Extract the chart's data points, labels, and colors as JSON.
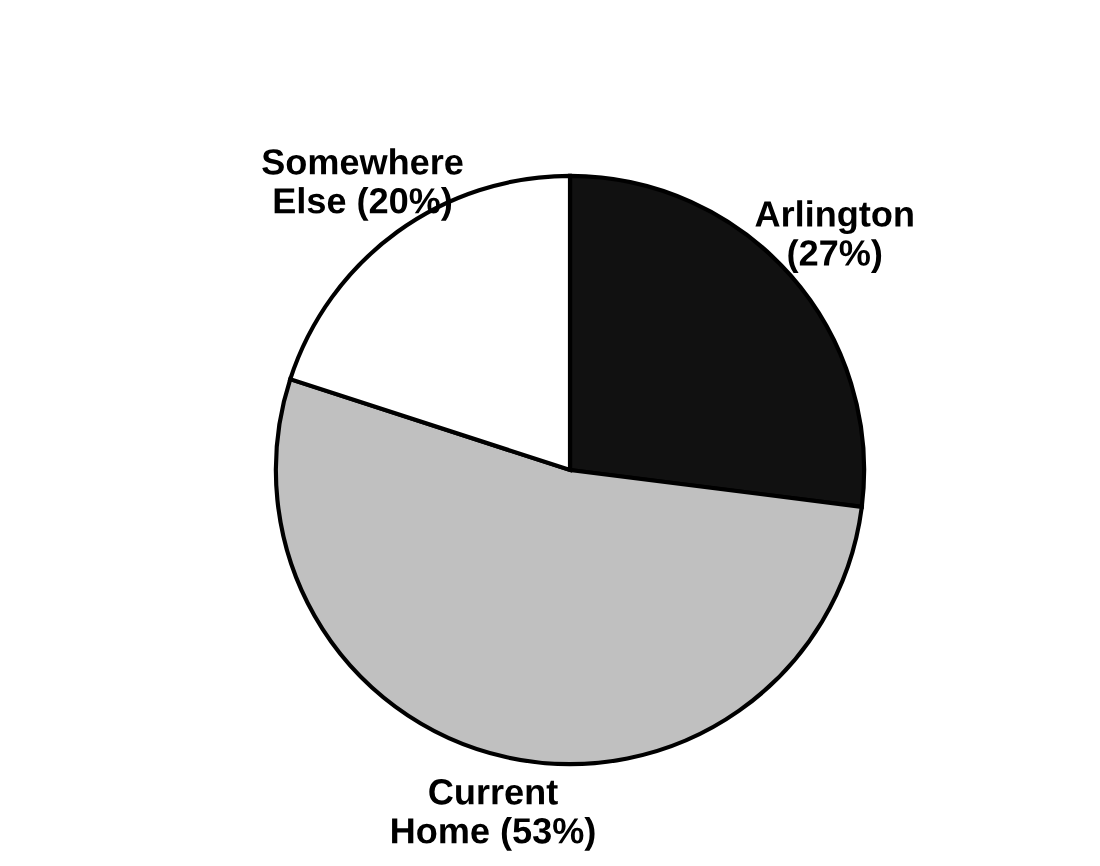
{
  "chart_data": {
    "type": "pie",
    "categories": [
      "Arlington",
      "Current Home",
      "Somewhere Else"
    ],
    "values": [
      27,
      53,
      20
    ],
    "value_labels": [
      "(27%)",
      "(53%)",
      "(20%)"
    ],
    "colors": [
      "#111111",
      "#c0c0c0",
      "#ffffff"
    ],
    "legend": false
  }
}
